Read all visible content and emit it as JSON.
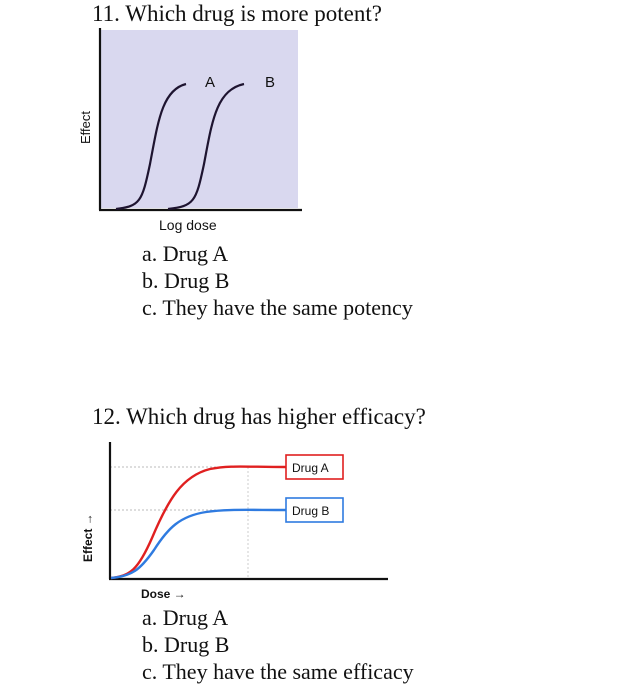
{
  "questions": [
    {
      "title": "11. Which drug is more potent?",
      "choices": [
        "a. Drug A",
        "b. Drug B",
        "c. They have the same potency"
      ]
    },
    {
      "title": "12. Which drug has higher efficacy?",
      "choices": [
        "a. Drug A",
        "b. Drug B",
        "c. They have the same efficacy"
      ]
    }
  ],
  "figure1": {
    "ylabel": "Effect",
    "xlabel": "Log dose",
    "curve_labels": [
      "A",
      "B"
    ],
    "colors": {
      "background": "#d9d8ef",
      "curve": "#1e1430",
      "axis": "#111111"
    }
  },
  "figure2": {
    "ylabel": "Effect →",
    "xlabel": "Dose →",
    "legend": [
      "Drug A",
      "Drug B"
    ],
    "colors": {
      "drug_a": "#e02020",
      "drug_b": "#2f7be0",
      "axis": "#111111"
    }
  },
  "chart_data": [
    {
      "type": "line",
      "title": "",
      "xlabel": "Log dose",
      "ylabel": "Effect",
      "x_scale": "log",
      "series": [
        {
          "name": "A",
          "shape": "sigmoid",
          "relative_midpoint_dose": 1.0,
          "relative_max_effect": 1.0
        },
        {
          "name": "B",
          "shape": "sigmoid",
          "relative_midpoint_dose": 2.5,
          "relative_max_effect": 1.0
        }
      ],
      "grid": false
    },
    {
      "type": "line",
      "title": "",
      "xlabel": "Dose →",
      "ylabel": "Effect →",
      "series": [
        {
          "name": "Drug A",
          "shape": "sigmoid",
          "relative_max_effect": 1.0
        },
        {
          "name": "Drug B",
          "shape": "sigmoid",
          "relative_max_effect": 0.6
        }
      ],
      "legend": "right",
      "grid": true
    }
  ]
}
